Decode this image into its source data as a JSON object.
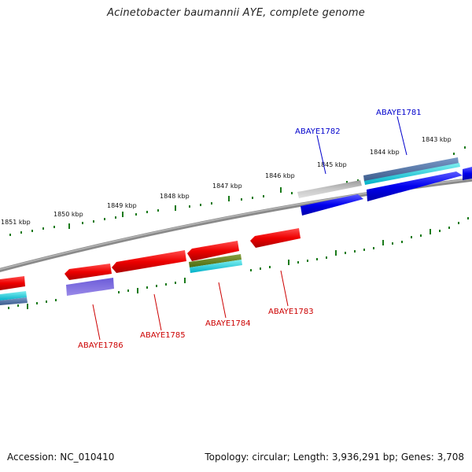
{
  "title": "Acinetobacter baumannii AYE, complete genome",
  "footer": {
    "accession": "Accession: NC_010410",
    "topology": "Topology: circular; Length: 3,936,291 bp; Genes: 3,708"
  },
  "ticks": [
    "1843 kbp",
    "1844 kbp",
    "1845 kbp",
    "1846 kbp",
    "1847 kbp",
    "1848 kbp",
    "1849 kbp",
    "1850 kbp",
    "1851 kbp"
  ],
  "genes": [
    {
      "name": "ABAYE1781",
      "strand": "forward",
      "color": "#0000cc"
    },
    {
      "name": "ABAYE1782",
      "strand": "forward",
      "color": "#0000cc"
    },
    {
      "name": "ABAYE1783",
      "strand": "reverse",
      "color": "#cc0000"
    },
    {
      "name": "ABAYE1784",
      "strand": "reverse",
      "color": "#cc0000"
    },
    {
      "name": "ABAYE1785",
      "strand": "reverse",
      "color": "#cc0000"
    },
    {
      "name": "ABAYE1786",
      "strand": "reverse",
      "color": "#cc0000"
    }
  ],
  "colors": {
    "forward_cds": "#0000ee",
    "reverse_cds": "#ee0000",
    "tick_dots": "#1a7a1a",
    "backbone": "#808080"
  }
}
